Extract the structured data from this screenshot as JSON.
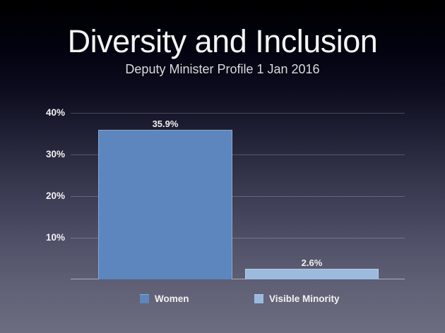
{
  "slide": {
    "title": "Diversity and Inclusion",
    "subtitle": "Deputy Minister Profile 1 Jan 2016"
  },
  "chart_data": {
    "type": "bar",
    "title": "Diversity and Inclusion",
    "subtitle": "Deputy Minister Profile 1 Jan 2016",
    "categories": [
      "Women",
      "Visible Minority"
    ],
    "values": [
      35.9,
      2.6
    ],
    "value_labels": [
      "35.9%",
      "2.6%"
    ],
    "ytick_labels": [
      "40%",
      "30%",
      "20%",
      "10%"
    ],
    "ytick_values": [
      40,
      30,
      20,
      10
    ],
    "ylim": [
      0,
      40
    ],
    "grid": true,
    "legend_position": "bottom",
    "bar_colors": [
      "#5c86bd",
      "#9bbade"
    ],
    "gridline_color": "rgba(255,255,255,0.22)",
    "text_color": "#f2f2f2",
    "background_top": "#000000",
    "background_bottom": "#6d6d81"
  }
}
